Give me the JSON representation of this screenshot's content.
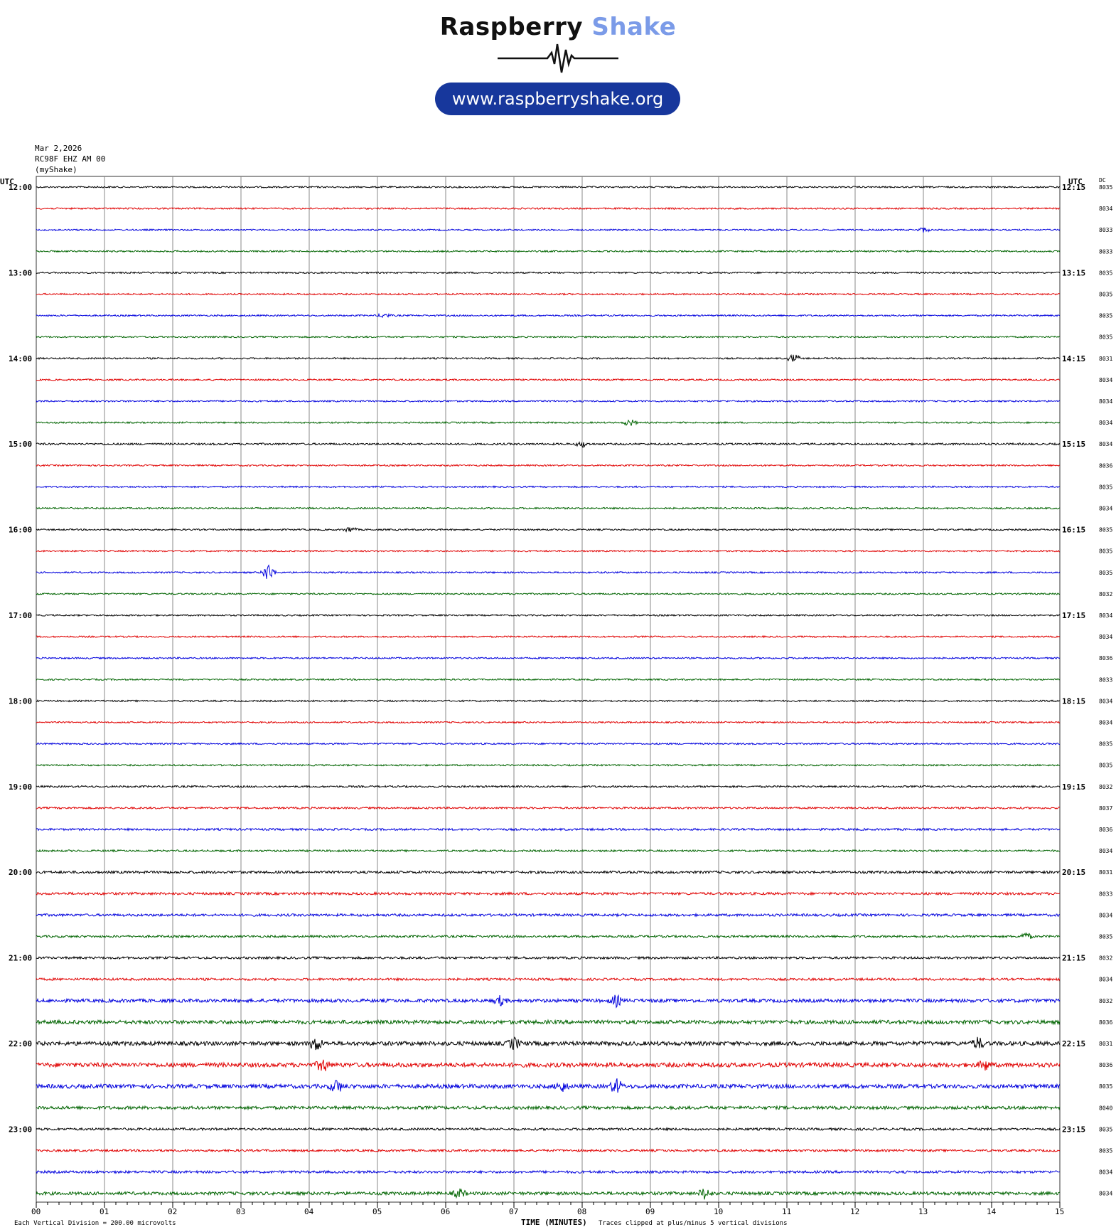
{
  "brand": {
    "name_part1": "Raspberry",
    "name_part2": "Shake",
    "url": "www.raspberryshake.org",
    "accent_color": "#7b9be8",
    "pill_color": "#17379c"
  },
  "header": {
    "date": "Mar 2,2026",
    "station": "RC98F EHZ AM 00",
    "owner": "(myShake)"
  },
  "labels": {
    "left_utc": "UTC",
    "right_utc": "UTC",
    "dc": "DC",
    "xlabel": "TIME (MINUTES)",
    "note_left": "Each Vertical Division =  200.00 microvolts",
    "note_right": "Traces clipped at plus/minus 5 vertical divisions"
  },
  "chart_data": {
    "type": "line",
    "title": "",
    "xlabel": "TIME (MINUTES)",
    "ylabel": "",
    "x_ticks": [
      "00",
      "01",
      "02",
      "03",
      "04",
      "05",
      "06",
      "07",
      "08",
      "09",
      "10",
      "11",
      "12",
      "13",
      "14",
      "15"
    ],
    "xlim": [
      0,
      15
    ],
    "trace_colors": [
      "#000000",
      "#e00000",
      "#0000dd",
      "#006400"
    ],
    "hour_labels_left": [
      "12:00",
      "13:00",
      "14:00",
      "15:00",
      "16:00",
      "17:00",
      "18:00",
      "19:00",
      "20:00",
      "21:00",
      "22:00",
      "23:00"
    ],
    "hour_labels_right": [
      "12:15",
      "13:15",
      "14:15",
      "15:15",
      "16:15",
      "17:15",
      "18:15",
      "19:15",
      "20:15",
      "21:15",
      "22:15",
      "23:15"
    ],
    "dc_offsets": [
      8035,
      8034,
      8033,
      8033,
      8035,
      8035,
      8035,
      8035,
      8031,
      8034,
      8034,
      8034,
      8034,
      8036,
      8035,
      8034,
      8035,
      8035,
      8035,
      8032,
      8034,
      8034,
      8036,
      8033,
      8034,
      8034,
      8035,
      8035,
      8032,
      8037,
      8036,
      8034,
      8031,
      8033,
      8034,
      8035,
      8032,
      8034,
      8032,
      8036,
      8031,
      8036,
      8035,
      8040,
      8035,
      8035,
      8034,
      8034
    ],
    "noise_level": [
      1,
      1,
      1,
      1,
      1,
      1,
      1,
      1,
      1,
      1,
      1,
      1,
      1.2,
      1,
      1,
      1,
      1,
      1,
      1,
      1,
      1,
      1,
      1,
      1,
      1,
      1,
      1,
      1,
      1.2,
      1.2,
      1.3,
      1.2,
      1.6,
      1.6,
      1.6,
      1.4,
      1.5,
      1.5,
      2.2,
      2.4,
      2.6,
      2.8,
      2.6,
      2,
      1.5,
      1.4,
      1.6,
      2
    ],
    "events": [
      {
        "row": 2,
        "minute": 13.0,
        "amplitude": 3
      },
      {
        "row": 6,
        "minute": 5.1,
        "amplitude": 3
      },
      {
        "row": 8,
        "minute": 11.1,
        "amplitude": 6
      },
      {
        "row": 11,
        "minute": 8.7,
        "amplitude": 5
      },
      {
        "row": 12,
        "minute": 8.0,
        "amplitude": 4
      },
      {
        "row": 16,
        "minute": 4.6,
        "amplitude": 4
      },
      {
        "row": 18,
        "minute": 3.4,
        "amplitude": 13
      },
      {
        "row": 35,
        "minute": 14.5,
        "amplitude": 5
      },
      {
        "row": 38,
        "minute": 8.5,
        "amplitude": 7
      },
      {
        "row": 38,
        "minute": 6.8,
        "amplitude": 6
      },
      {
        "row": 40,
        "minute": 4.1,
        "amplitude": 10
      },
      {
        "row": 40,
        "minute": 7.0,
        "amplitude": 8
      },
      {
        "row": 40,
        "minute": 13.8,
        "amplitude": 8
      },
      {
        "row": 41,
        "minute": 4.2,
        "amplitude": 9
      },
      {
        "row": 41,
        "minute": 13.9,
        "amplitude": 7
      },
      {
        "row": 42,
        "minute": 4.4,
        "amplitude": 9
      },
      {
        "row": 42,
        "minute": 8.5,
        "amplitude": 10
      },
      {
        "row": 42,
        "minute": 7.7,
        "amplitude": 7
      },
      {
        "row": 47,
        "minute": 9.8,
        "amplitude": 8
      },
      {
        "row": 47,
        "minute": 6.2,
        "amplitude": 6
      }
    ]
  }
}
